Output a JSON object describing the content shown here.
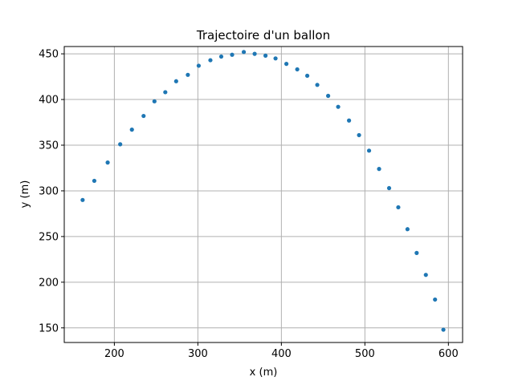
{
  "chart_data": {
    "type": "scatter",
    "title": "Trajectoire d'un ballon",
    "xlabel": "x (m)",
    "ylabel": "y (m)",
    "xlim": [
      140,
      617
    ],
    "ylim": [
      134,
      458
    ],
    "xticks": [
      200,
      300,
      400,
      500,
      600
    ],
    "yticks": [
      150,
      200,
      250,
      300,
      350,
      400,
      450
    ],
    "grid": true,
    "marker_color": "#1f77b4",
    "series": [
      {
        "points": [
          [
            162,
            290
          ],
          [
            176,
            311
          ],
          [
            192,
            331
          ],
          [
            207,
            351
          ],
          [
            221,
            367
          ],
          [
            235,
            382
          ],
          [
            248,
            398
          ],
          [
            261,
            408
          ],
          [
            274,
            420
          ],
          [
            288,
            427
          ],
          [
            301,
            437
          ],
          [
            315,
            443
          ],
          [
            328,
            447
          ],
          [
            341,
            449
          ],
          [
            355,
            452
          ],
          [
            368,
            450
          ],
          [
            381,
            448
          ],
          [
            393,
            445
          ],
          [
            406,
            439
          ],
          [
            419,
            433
          ],
          [
            431,
            426
          ],
          [
            443,
            416
          ],
          [
            456,
            404
          ],
          [
            468,
            392
          ],
          [
            481,
            377
          ],
          [
            493,
            361
          ],
          [
            505,
            344
          ],
          [
            517,
            324
          ],
          [
            529,
            303
          ],
          [
            540,
            282
          ],
          [
            551,
            258
          ],
          [
            562,
            232
          ],
          [
            573,
            208
          ],
          [
            584,
            181
          ],
          [
            594,
            148
          ]
        ]
      }
    ]
  }
}
